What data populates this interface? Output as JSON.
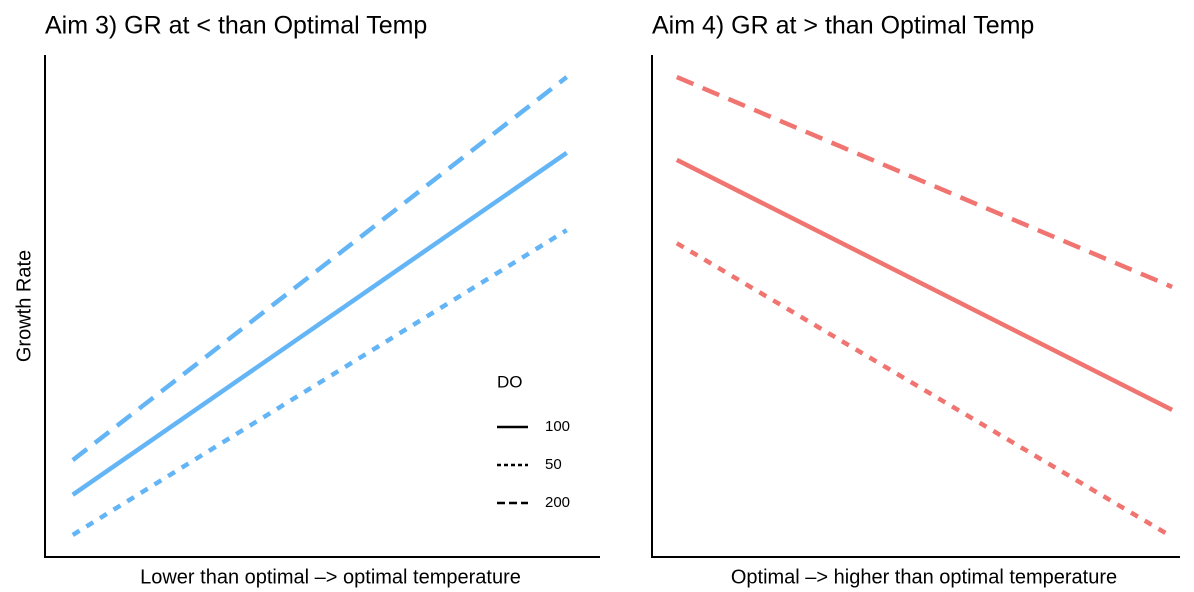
{
  "chart_data": [
    {
      "type": "line",
      "title": "Aim 3) GR at < than Optimal Temp",
      "x_label": "Lower than optimal –> optimal temperature",
      "y_label": "Growth Rate",
      "xlim": [
        0,
        1
      ],
      "ylim": [
        0,
        100
      ],
      "x": [
        0.05,
        0.94
      ],
      "series": [
        {
          "name": "100",
          "color": "#64b5f6",
          "dash": "solid",
          "values": [
            12.4,
            80.5
          ]
        },
        {
          "name": "50",
          "color": "#64b5f6",
          "dash": "dotted",
          "values": [
            4.4,
            65.1
          ]
        },
        {
          "name": "200",
          "color": "#64b5f6",
          "dash": "dashed",
          "values": [
            19.3,
            95.6
          ]
        }
      ],
      "legend": true,
      "legend_title": "DO"
    },
    {
      "type": "line",
      "title": "Aim 4) GR at > than Optimal Temp",
      "x_label": "Optimal –> higher than optimal temperature",
      "xlim": [
        0,
        1
      ],
      "ylim": [
        0,
        100
      ],
      "x": [
        0.047,
        0.985
      ],
      "series": [
        {
          "name": "100",
          "color": "#f07470",
          "dash": "solid",
          "values": [
            79.1,
            29.3
          ]
        },
        {
          "name": "50",
          "color": "#f07470",
          "dash": "dotted",
          "values": [
            62.5,
            4.0
          ]
        },
        {
          "name": "200",
          "color": "#f07470",
          "dash": "dashed",
          "values": [
            95.6,
            53.8
          ]
        }
      ],
      "legend": false
    }
  ]
}
